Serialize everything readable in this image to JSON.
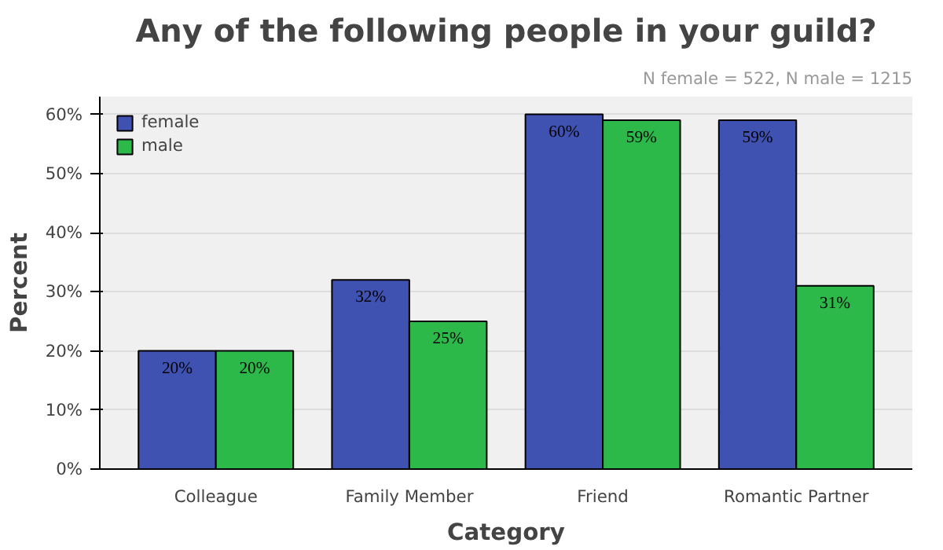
{
  "chart_data": {
    "type": "bar",
    "title": "Any of the following people in your guild?",
    "xlabel": "Category",
    "ylabel": "Percent",
    "annotations": [
      "N female = 522, N male = 1215"
    ],
    "categories": [
      "Colleague",
      "Family Member",
      "Friend",
      "Romantic Partner"
    ],
    "series": [
      {
        "name": "female",
        "color": "#3f51b1",
        "values": [
          20,
          32,
          60,
          59
        ],
        "value_labels": [
          "20%",
          "32%",
          "60%",
          "59%"
        ]
      },
      {
        "name": "male",
        "color": "#2db84a",
        "values": [
          20,
          25,
          59,
          31
        ],
        "value_labels": [
          "20%",
          "25%",
          "59%",
          "31%"
        ]
      }
    ],
    "ylim": [
      0,
      63
    ],
    "yticks": [
      {
        "value": 0,
        "label": "0%"
      },
      {
        "value": 10,
        "label": "10%"
      },
      {
        "value": 20,
        "label": "20%"
      },
      {
        "value": 30,
        "label": "30%"
      },
      {
        "value": 40,
        "label": "40%"
      },
      {
        "value": 50,
        "label": "50%"
      },
      {
        "value": 60,
        "label": "60%"
      }
    ],
    "grid": "y",
    "legend": "top left"
  }
}
